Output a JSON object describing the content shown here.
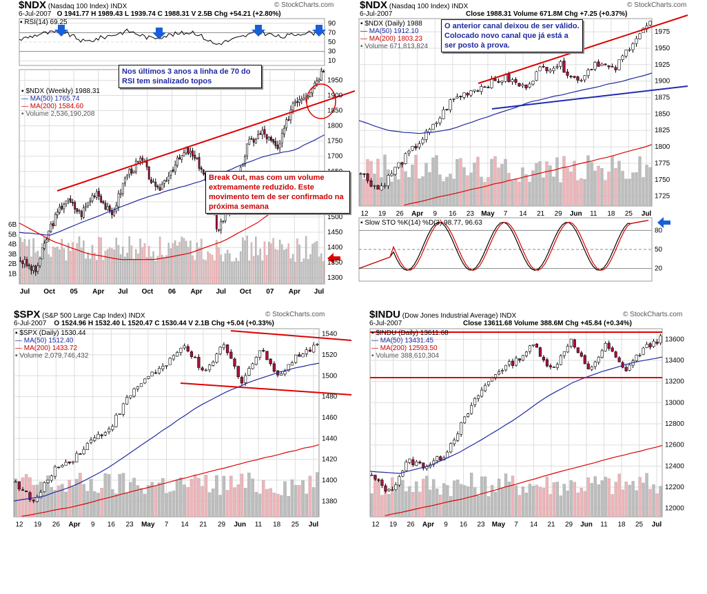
{
  "copyright": "© StockCharts.com",
  "panels": [
    {
      "id": "ndx-weekly",
      "symbol": "$NDX",
      "name": "(Nasdaq 100 Index)",
      "exchange": "INDX",
      "date": "6-Jul-2007",
      "quote": "O 1941.77  H 1989.43  L 1939.74  C 1988.31  V 2.5B  Chg +54.21 (+2.80%)",
      "rsi_label": "RSI(14) 69.25",
      "rsi_ticks": [
        "90",
        "70",
        "50",
        "30",
        "10"
      ],
      "legend": [
        "$NDX (Weekly) 1988.31",
        "MA(50) 1765.74",
        "MA(200) 1584.60",
        "Volume 2,536,190,208"
      ],
      "y_ticks": [
        "1950",
        "1900",
        "1850",
        "1800",
        "1750",
        "1700",
        "1650",
        "1600",
        "1550",
        "1500",
        "1450",
        "1400",
        "1350",
        "1300"
      ],
      "vol_ticks": [
        "6B",
        "5B",
        "4B",
        "3B",
        "2B",
        "1B"
      ],
      "x_ticks": [
        "Jul",
        "Oct",
        "05",
        "Apr",
        "Jul",
        "Oct",
        "06",
        "Apr",
        "Jul",
        "Oct",
        "07",
        "Apr",
        "Jul"
      ],
      "note_rsi": "Nos últimos 3 anos a linha de 70 do RSI tem sinalizado topos",
      "note_break": "Break Out, mas com um volume extremamente reduzido. Este movimento tem de ser confirmado na próxima semana"
    },
    {
      "id": "ndx-daily",
      "symbol": "$NDX",
      "name": "(Nasdaq 100 Index)",
      "exchange": "INDX",
      "date": "6-Jul-2007",
      "quote": "Close 1988.31  Volume 671.8M  Chg +7.25 (+0.37%)",
      "legend": [
        "$NDX (Daily) 1988",
        "MA(50) 1912.10",
        "MA(200) 1803.23",
        "Volume 671,813,824"
      ],
      "y_ticks": [
        "1975",
        "1950",
        "1925",
        "1900",
        "1875",
        "1850",
        "1825",
        "1800",
        "1775",
        "1750",
        "1725"
      ],
      "sto_label": "Slow STO %K(14) %D(3) 98.77, 96.63",
      "sto_ticks": [
        "80",
        "50",
        "20"
      ],
      "x_ticks": [
        "12",
        "19",
        "26",
        "Apr",
        "9",
        "16",
        "23",
        "May",
        "7",
        "14",
        "21",
        "29",
        "Jun",
        "11",
        "18",
        "25",
        "Jul"
      ],
      "note": "O anterior canal deixou de ser válido. Colocado novo canal que já está a ser posto à prova."
    },
    {
      "id": "spx-daily",
      "symbol": "$SPX",
      "name": "(S&P 500 Large Cap Index)",
      "exchange": "INDX",
      "date": "6-Jul-2007",
      "quote": "O 1524.96  H 1532.40  L 1520.47  C 1530.44  V 2.1B  Chg +5.04 (+0.33%)",
      "legend": [
        "$SPX (Daily) 1530.44",
        "MA(50) 1512.40",
        "MA(200) 1433.72",
        "Volume 2,079,746,432"
      ],
      "y_ticks": [
        "1540",
        "1520",
        "1500",
        "1480",
        "1460",
        "1440",
        "1420",
        "1400",
        "1380"
      ],
      "x_ticks": [
        "12",
        "19",
        "26",
        "Apr",
        "9",
        "16",
        "23",
        "May",
        "7",
        "14",
        "21",
        "29",
        "Jun",
        "11",
        "18",
        "25",
        "Jul"
      ]
    },
    {
      "id": "indu-daily",
      "symbol": "$INDU",
      "name": "(Dow Jones Industrial Average)",
      "exchange": "INDX",
      "date": "6-Jul-2007",
      "quote": "Close 13611.68  Volume 388.6M  Chg +45.84 (+0.34%)",
      "legend": [
        "$INDU (Daily) 13611.68",
        "MA(50) 13431.45",
        "MA(200) 12593.50",
        "Volume 388,610,304"
      ],
      "y_ticks": [
        "13600",
        "13400",
        "13200",
        "13000",
        "12800",
        "12600",
        "12400",
        "12200",
        "12000"
      ],
      "x_ticks": [
        "12",
        "19",
        "26",
        "Apr",
        "9",
        "16",
        "23",
        "May",
        "7",
        "14",
        "21",
        "29",
        "Jun",
        "11",
        "18",
        "25",
        "Jul"
      ]
    }
  ],
  "chart_data": [
    {
      "type": "candlestick",
      "title": "$NDX (Nasdaq 100 Index) Weekly",
      "series": [
        {
          "name": "$NDX",
          "last": 1988.31
        },
        {
          "name": "MA(50)",
          "last": 1765.74
        },
        {
          "name": "MA(200)",
          "last": 1584.6
        },
        {
          "name": "RSI(14)",
          "last": 69.25
        }
      ],
      "ylim": [
        1280,
        1990
      ]
    },
    {
      "type": "candlestick",
      "title": "$NDX (Nasdaq 100 Index) Daily",
      "series": [
        {
          "name": "$NDX",
          "last": 1988.31
        },
        {
          "name": "MA(50)",
          "last": 1912.1
        },
        {
          "name": "MA(200)",
          "last": 1803.23
        },
        {
          "name": "Slow STO %K",
          "last": 98.77
        },
        {
          "name": "%D",
          "last": 96.63
        }
      ],
      "ylim": [
        1710,
        1995
      ]
    },
    {
      "type": "candlestick",
      "title": "$SPX (S&P 500 Large Cap Index) Daily",
      "series": [
        {
          "name": "$SPX",
          "last": 1530.44
        },
        {
          "name": "MA(50)",
          "last": 1512.4
        },
        {
          "name": "MA(200)",
          "last": 1433.72
        }
      ],
      "ylim": [
        1365,
        1545
      ]
    },
    {
      "type": "candlestick",
      "title": "$INDU (Dow Jones Industrial Average) Daily",
      "series": [
        {
          "name": "$INDU",
          "last": 13611.68
        },
        {
          "name": "MA(50)",
          "last": 13431.45
        },
        {
          "name": "MA(200)",
          "last": 12593.5
        }
      ],
      "ylim": [
        11920,
        13700
      ]
    }
  ]
}
